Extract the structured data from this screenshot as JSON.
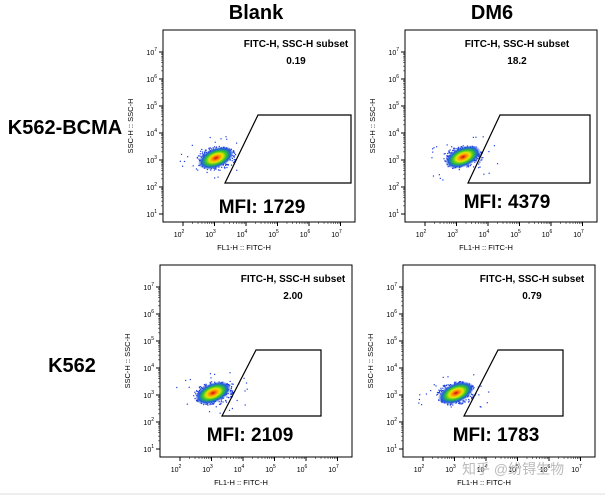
{
  "columns": [
    "Blank",
    "DM6"
  ],
  "rows": [
    "K562-BCMA",
    "K562"
  ],
  "panels": [
    {
      "gate": "FITC-H, SSC-H subset",
      "percent": "0.19",
      "mfi": "MFI: 1729",
      "x_label": "FL1-H :: FITC-H",
      "y_label": "SSC-H :: SSC-H"
    },
    {
      "gate": "FITC-H, SSC-H subset",
      "percent": "18.2",
      "mfi": "MFI: 4379",
      "x_label": "FL1-H :: FITC-H",
      "y_label": "SSC-H :: SSC-H"
    },
    {
      "gate": "FITC-H, SSC-H subset",
      "percent": "2.00",
      "mfi": "MFI: 2109",
      "x_label": "FL1-H :: FITC-H",
      "y_label": "SSC-H :: SSC-H"
    },
    {
      "gate": "FITC-H, SSC-H subset",
      "percent": "0.79",
      "mfi": "MFI: 1783",
      "x_label": "FL1-H :: FITC-H",
      "y_label": "SSC-H :: SSC-H"
    }
  ],
  "x_ticks": [
    {
      "base": "10",
      "exp": "2"
    },
    {
      "base": "10",
      "exp": "3"
    },
    {
      "base": "10",
      "exp": "4"
    },
    {
      "base": "10",
      "exp": "5"
    },
    {
      "base": "10",
      "exp": "6"
    },
    {
      "base": "10",
      "exp": "7"
    }
  ],
  "y_ticks": [
    {
      "base": "10",
      "exp": "1"
    },
    {
      "base": "10",
      "exp": "2"
    },
    {
      "base": "10",
      "exp": "3"
    },
    {
      "base": "10",
      "exp": "4"
    },
    {
      "base": "10",
      "exp": "5"
    },
    {
      "base": "10",
      "exp": "6"
    },
    {
      "base": "10",
      "exp": "7"
    }
  ],
  "watermark": "知乎 @纷锝生物"
}
